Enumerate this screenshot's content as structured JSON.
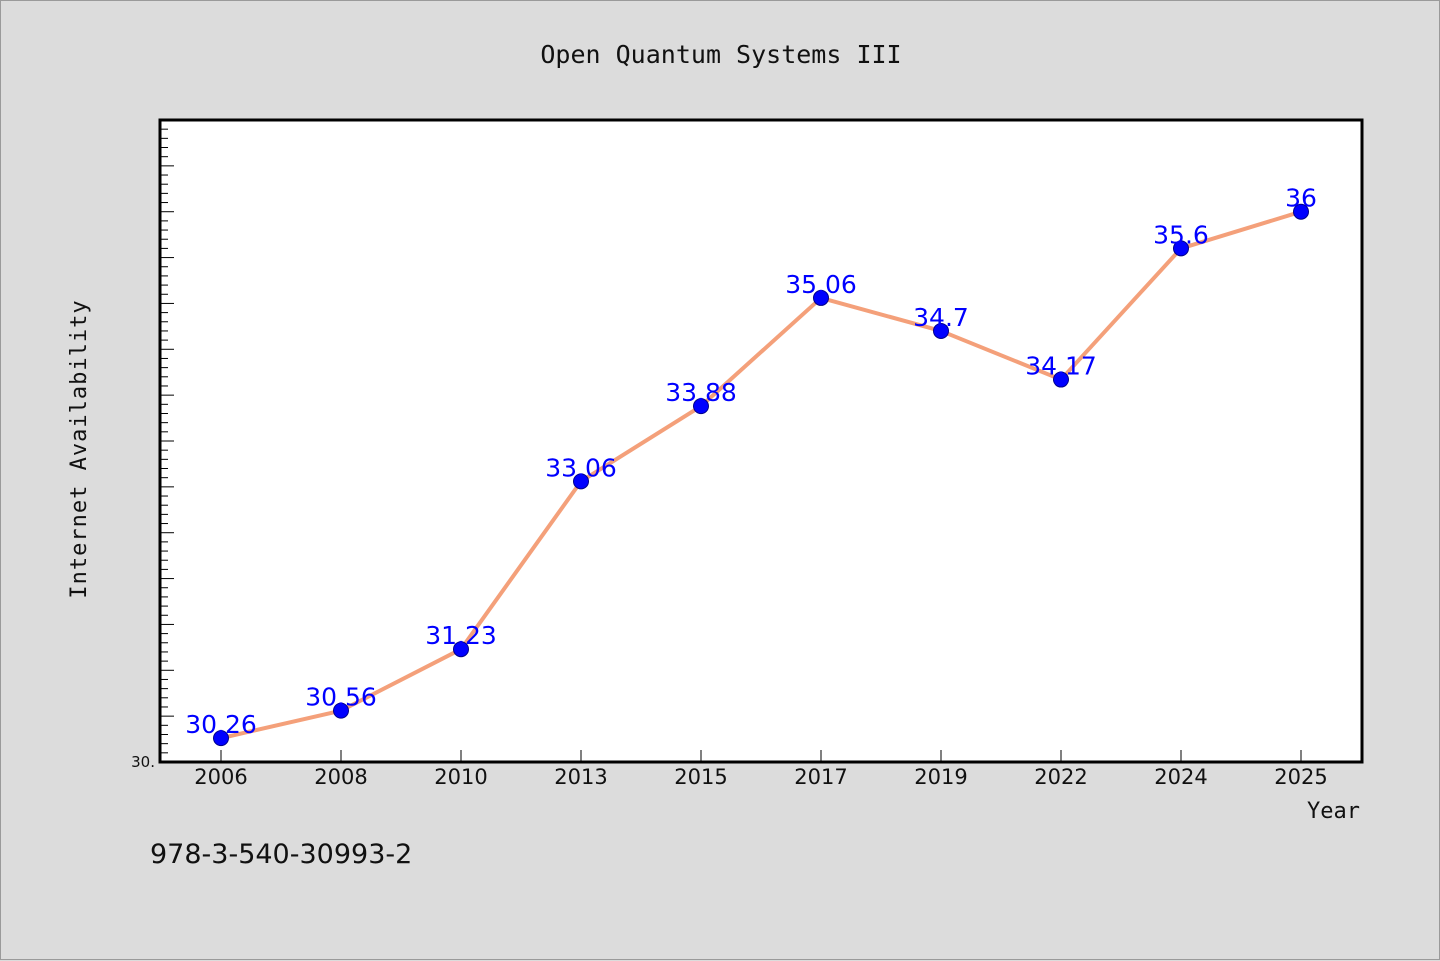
{
  "chart_data": {
    "type": "line",
    "title": "Open Quantum Systems III",
    "xlabel": "Year",
    "ylabel": "Internet Availability",
    "categories": [
      "2006",
      "2008",
      "2010",
      "2013",
      "2015",
      "2017",
      "2019",
      "2022",
      "2024",
      "2025"
    ],
    "series": [
      {
        "values": [
          30.26,
          30.56,
          31.23,
          33.06,
          33.88,
          35.06,
          34.7,
          34.17,
          35.6,
          36
        ]
      }
    ],
    "data_labels": [
      "30.26",
      "30.56",
      "31.23",
      "33.06",
      "33.88",
      "35.06",
      "34.7",
      "34.17",
      "35.6",
      "36"
    ],
    "ylim": [
      30,
      37
    ],
    "y_tick_label": "30.",
    "grid": false,
    "legend": "none",
    "colors": {
      "line": "#f4a07a",
      "marker": "#0000ff",
      "data_label": "#0000ff",
      "plot_background": "#ffffff",
      "figure_background": "#dcdcdc"
    }
  },
  "footer": {
    "isbn": "978-3-540-30993-2"
  }
}
